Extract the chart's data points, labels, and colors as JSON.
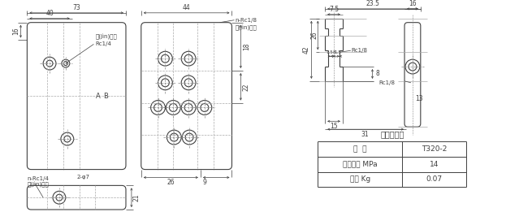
{
  "title": "集成块参数",
  "table_rows": [
    [
      "型  号",
      "T320-2"
    ],
    [
      "公称压力 MPa",
      "14"
    ],
    [
      "重量 Kg",
      "0.07"
    ]
  ],
  "bg_color": "#ffffff",
  "line_color": "#404040",
  "text_color": "#404040",
  "dim_color": "#888888",
  "fontsize": 6.5,
  "dim_fontsize": 5.5
}
